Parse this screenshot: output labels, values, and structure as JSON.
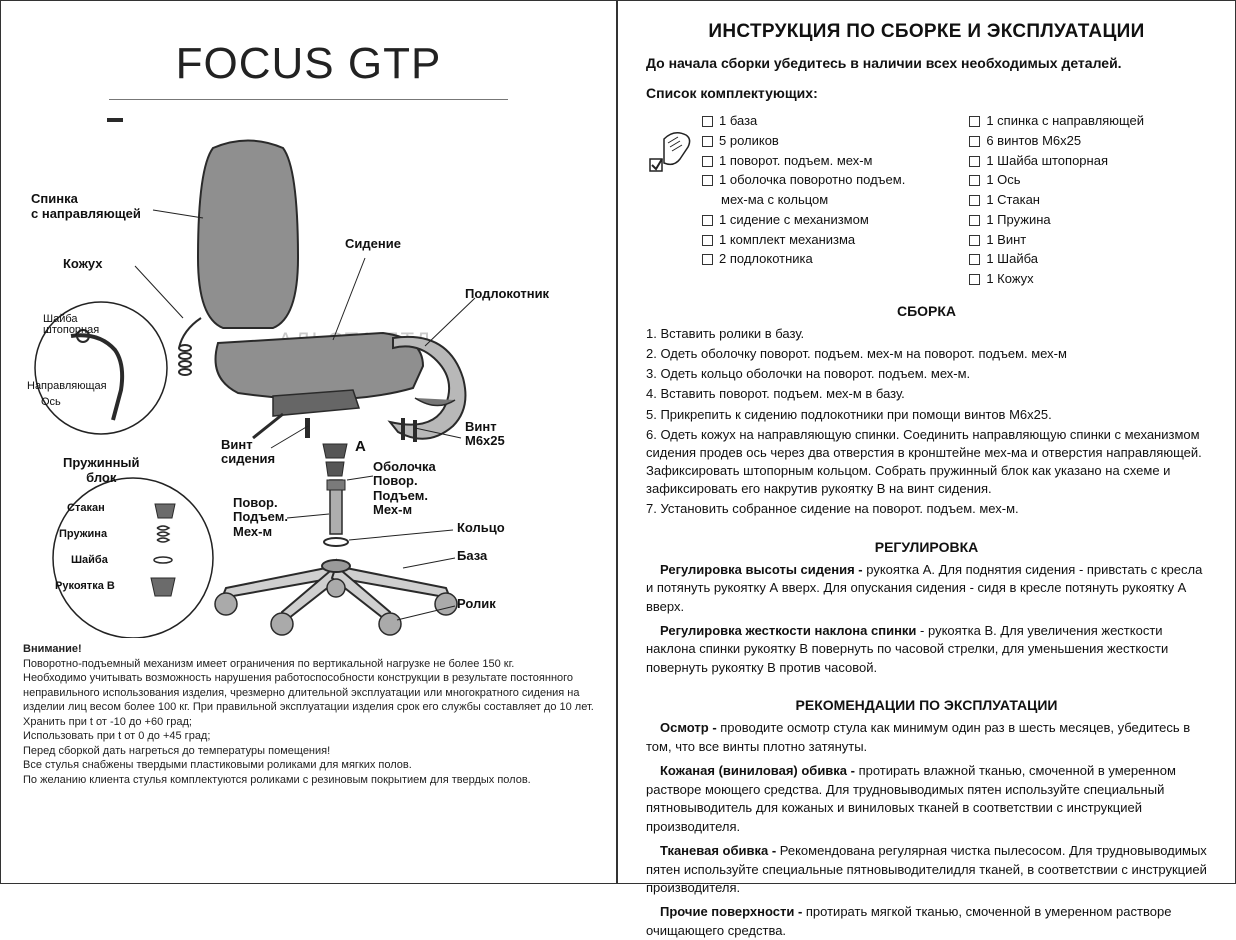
{
  "product_title": "FOCUS GTP",
  "diagram_labels": {
    "spinka": "Спинка\nс направляющей",
    "kozhukh": "Кожух",
    "sidenie": "Сидение",
    "podlokotnik": "Подлокотник",
    "vint_sideniya": "Винт\nсидения",
    "vint_m6": "Винт\nМ6х25",
    "a": "А",
    "obolochka": "Оболочка\nПовор.\nПодъем.\nМех-м",
    "povor_mech": "Повор.\nПодъем.\nМех-м",
    "koltso": "Кольцо",
    "baza": "База",
    "rolik": "Ролик",
    "pruzhinny_title": "Пружинный\nблок",
    "stakan": "Стакан",
    "pruzhina": "Пружина",
    "shaiba": "Шайба",
    "rukoyatka_b": "Рукоятка В",
    "shaiba_sht": "Шайба\nштопорная",
    "napravlyayushchaya": "Направляющая",
    "os": "Ось",
    "watermark": "АЛЬСТА ЛТД"
  },
  "warning": {
    "heading": "Внимание!",
    "lines": [
      "Поворотно-подъемный механизм имеет ограничения по вертикальной нагрузке не более 150 кг.",
      "Необходимо учитывать возможность нарушения работоспособности конструкции в результате постоянного неправильного использования изделия, чрезмерно длительной эксплуатации или многократного сидения на изделии лиц весом более 100 кг. При правильной эксплуатации изделия срок его службы составляет до 10 лет.",
      "Хранить при t от -10 до +60 град;",
      "Использовать при t от 0 до +45 град;",
      "Перед сборкой дать нагреться до температуры помещения!",
      "Все стулья снабжены твердыми пластиковыми роликами для мягких полов.",
      "По желанию клиента стулья комплектуются роликами  с резиновым покрытием для твердых полов."
    ]
  },
  "instr_title": "ИНСТРУКЦИЯ ПО  СБОРКЕ И ЭКСПЛУАТАЦИИ",
  "instr_sub": "До начала сборки убедитесь в наличии всех необходимых деталей.",
  "parts_heading": "Список комплектующих:",
  "parts_col1": [
    "1 база",
    "5 роликов",
    "1 поворот. подъем. мех-м",
    "1 оболочка поворотно подъем.",
    "__indent__мех-ма с кольцом",
    "1 сидение с механизмом",
    "1 комплект механизма",
    "2 подлокотника"
  ],
  "parts_col2": [
    "1 спинка с направляющей",
    "6 винтов М6х25",
    "1 Шайба штопорная",
    "1 Ось",
    "1 Стакан",
    "1 Пружина",
    "1 Винт",
    "1 Шайба",
    "1 Кожух"
  ],
  "assembly_heading": "СБОРКА",
  "assembly_steps": [
    "1.  Вставить ролики в базу.",
    "2.  Одеть оболочку поворот. подъем. мех-м на поворот. подъем. мех-м",
    "3.  Одеть кольцо оболочки на поворот. подъем. мех-м.",
    "4.  Вставить поворот. подъем. мех-м в базу.",
    "5.  Прикрепить к сидению подлокотники при помощи винтов М6х25.",
    "6.  Одеть кожух на направляющую спинки. Соединить направляющую спинки с механизмом сидения продев ось через два отверстия в кронштейне мех-ма и отверстия направляющей. Зафиксировать штопорным кольцом. Собрать пружинный блок как указано на схеме и зафиксировать его накрутив рукоятку В на винт сидения.",
    "7.  Установить собранное сидение на поворот. подъем. мех-м."
  ],
  "reg_heading": "РЕГУЛИРОВКА",
  "reg_paras": [
    {
      "b": "Регулировка высоты сидения - ",
      "t": "рукоятка А. Для поднятия сидения - привстать с кресла и потянуть рукоятку А вверх. Для опускания сидения - сидя в кресле потянуть рукоятку А вверх."
    },
    {
      "b": "Регулировка жесткости наклона спинки ",
      "t": "- рукоятка В. Для увеличения жесткости наклона спинки рукоятку В повернуть по часовой стрелки, для уменьшения жесткости повернуть рукоятку В против часовой."
    }
  ],
  "care_heading": "РЕКОМЕНДАЦИИ ПО ЭКСПЛУАТАЦИИ",
  "care_paras": [
    {
      "b": "Осмотр - ",
      "t": "проводите осмотр стула как минимум один раз в шесть месяцев, убедитесь в том, что все винты плотно затянуты."
    },
    {
      "b": "Кожаная  (виниловая) обивка - ",
      "t": "протирать влажной тканью, смоченной в умеренном растворе моющего средства. Для трудновыводимых пятен используйте специальный пятновыводитель для кожаных и виниловых тканей в соответствии с инструкцией производителя."
    },
    {
      "b": "Тканевая обивка - ",
      "t": "Рекомендована регулярная чистка пылесосом. Для трудновыводимых пятен используйте специальные пятновыводителидля тканей, в соответствии с инструкцией производителя."
    },
    {
      "b": "Прочие поверхности - ",
      "t": "протирать мягкой тканью, смоченной в умеренном растворе очищающего средства."
    }
  ],
  "colors": {
    "chair_fill": "#8f8f8f",
    "chair_stroke": "#2a2a2a",
    "line": "#222222",
    "watermark": "#c9c9c9"
  }
}
